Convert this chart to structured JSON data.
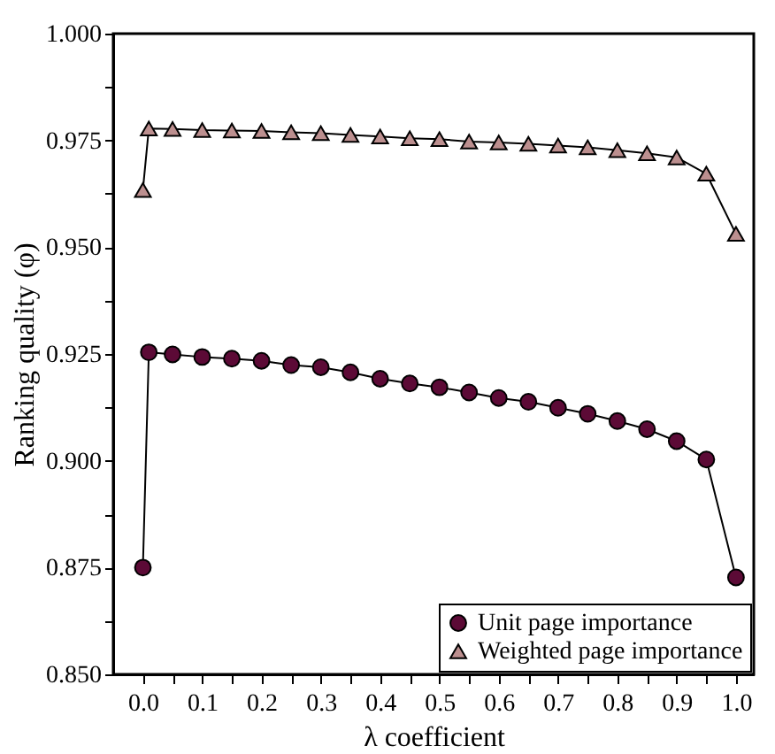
{
  "chart_data": {
    "type": "line",
    "xlabel": "λ coefficient",
    "ylabel": "Ranking quality (φ)",
    "x": [
      0.0,
      0.01,
      0.05,
      0.1,
      0.15,
      0.2,
      0.25,
      0.3,
      0.35,
      0.4,
      0.45,
      0.5,
      0.55,
      0.6,
      0.65,
      0.7,
      0.75,
      0.8,
      0.85,
      0.9,
      0.95,
      1.0
    ],
    "series": [
      {
        "name": "Unit page importance",
        "color": "#5c0a36",
        "marker": "circle",
        "values": [
          0.875,
          0.9254,
          0.9249,
          0.9243,
          0.9239,
          0.9234,
          0.9224,
          0.9219,
          0.9207,
          0.9192,
          0.9181,
          0.9172,
          0.916,
          0.9147,
          0.9138,
          0.9124,
          0.911,
          0.9093,
          0.9074,
          0.9046,
          0.9003,
          0.8727
        ]
      },
      {
        "name": "Weighted page importance",
        "color": "#bc8f8f",
        "marker": "triangle",
        "values": [
          0.9634,
          0.9778,
          0.9777,
          0.9774,
          0.9773,
          0.9772,
          0.9769,
          0.9767,
          0.9763,
          0.9759,
          0.9755,
          0.9753,
          0.9747,
          0.9745,
          0.9742,
          0.9738,
          0.9734,
          0.9727,
          0.972,
          0.971,
          0.9672,
          0.9531
        ]
      }
    ],
    "xlim": [
      -0.05,
      1.03
    ],
    "ylim": [
      0.85,
      1.0
    ],
    "xticks": [
      {
        "value": 0,
        "label": "0.0"
      },
      {
        "value": 0.05,
        "label": null
      },
      0.1,
      {
        "value": 0.15,
        "label": null
      },
      0.2,
      {
        "value": 0.25,
        "label": null
      },
      0.3,
      {
        "value": 0.35,
        "label": null
      },
      0.4,
      {
        "value": 0.45,
        "label": null
      },
      0.5,
      {
        "value": 0.55,
        "label": null
      },
      0.6,
      {
        "value": 0.65,
        "label": null
      },
      0.7,
      {
        "value": 0.75,
        "label": null
      },
      0.8,
      {
        "value": 0.85,
        "label": null
      },
      0.9,
      {
        "value": 0.95,
        "label": null
      },
      {
        "value": 1,
        "label": "1.0"
      }
    ],
    "yticks": [
      {
        "value": 0.85,
        "label": "0.850"
      },
      {
        "value": 0.8625,
        "label": null
      },
      {
        "value": 0.875,
        "label": "0.875"
      },
      {
        "value": 0.8875,
        "label": null
      },
      {
        "value": 0.9,
        "label": "0.900"
      },
      {
        "value": 0.9125,
        "label": null
      },
      {
        "value": 0.925,
        "label": "0.925"
      },
      {
        "value": 0.9375,
        "label": null
      },
      {
        "value": 0.95,
        "label": "0.950"
      },
      {
        "value": 0.9625,
        "label": null
      },
      {
        "value": 0.975,
        "label": "0.975"
      },
      {
        "value": 0.9875,
        "label": null
      },
      {
        "value": 1,
        "label": "1.000"
      }
    ],
    "grid": false,
    "legend": "bottom right",
    "line_style": "solid"
  }
}
